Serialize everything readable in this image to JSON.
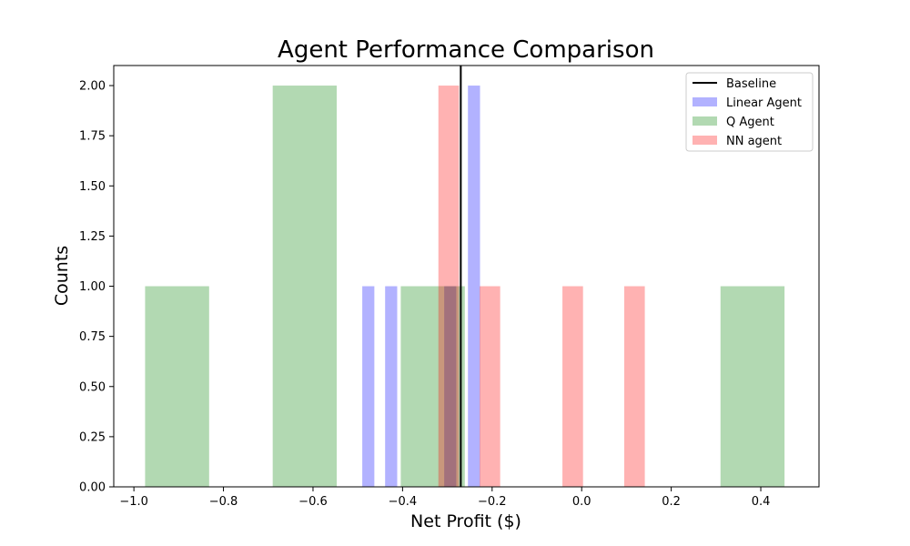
{
  "chart_data": {
    "type": "bar",
    "title": "Agent Performance Comparison",
    "xlabel": "Net Profit ($)",
    "ylabel": "Counts",
    "xlim": [
      -1.045,
      0.53
    ],
    "ylim": [
      0,
      2.1
    ],
    "x_ticks": [
      -1.0,
      -0.8,
      -0.6,
      -0.4,
      -0.2,
      0.0,
      0.2,
      0.4
    ],
    "x_tick_labels": [
      "−1.0",
      "−0.8",
      "−0.6",
      "−0.4",
      "−0.2",
      "0.0",
      "0.2",
      "0.4"
    ],
    "y_ticks": [
      0,
      0.25,
      0.5,
      0.75,
      1.0,
      1.25,
      1.5,
      1.75,
      2.0
    ],
    "y_tick_labels": [
      "0.00",
      "0.25",
      "0.50",
      "0.75",
      "1.00",
      "1.25",
      "1.50",
      "1.75",
      "2.00"
    ],
    "grid": false,
    "legend_position": "top-right",
    "baseline": {
      "name": "Baseline",
      "x": -0.27,
      "color": "#000000"
    },
    "series": [
      {
        "name": "Linear Agent",
        "color": "#0000ff",
        "opacity": 0.3,
        "bars": [
          {
            "x0": -0.49,
            "x1": -0.463,
            "count": 1
          },
          {
            "x0": -0.439,
            "x1": -0.412,
            "count": 1
          },
          {
            "x0": -0.307,
            "x1": -0.28,
            "count": 1
          },
          {
            "x0": -0.254,
            "x1": -0.227,
            "count": 2
          }
        ]
      },
      {
        "name": "Q Agent",
        "color": "#008000",
        "opacity": 0.3,
        "bars": [
          {
            "x0": -0.975,
            "x1": -0.832,
            "count": 1
          },
          {
            "x0": -0.69,
            "x1": -0.547,
            "count": 2
          },
          {
            "x0": -0.404,
            "x1": -0.261,
            "count": 1
          },
          {
            "x0": 0.31,
            "x1": 0.453,
            "count": 1
          }
        ]
      },
      {
        "name": "NN agent",
        "color": "#ff0000",
        "opacity": 0.3,
        "bars": [
          {
            "x0": -0.32,
            "x1": -0.274,
            "count": 2
          },
          {
            "x0": -0.228,
            "x1": -0.182,
            "count": 1
          },
          {
            "x0": -0.043,
            "x1": 0.003,
            "count": 1
          },
          {
            "x0": 0.095,
            "x1": 0.141,
            "count": 1
          }
        ]
      }
    ]
  }
}
